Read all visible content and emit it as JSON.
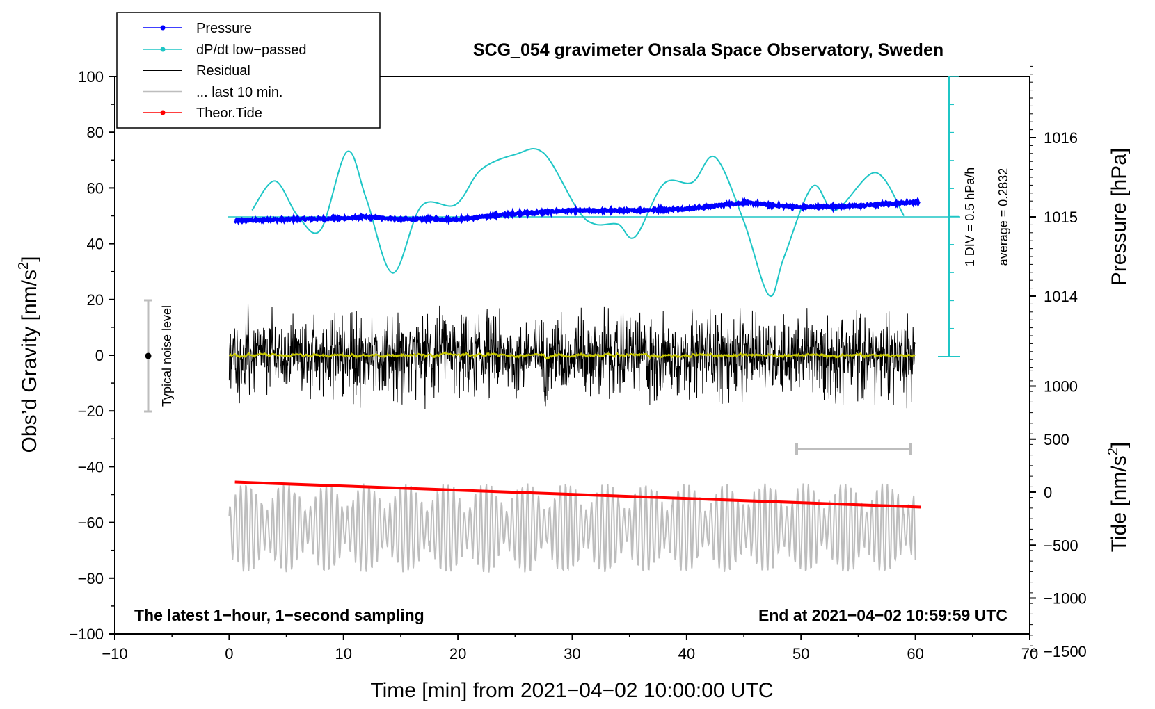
{
  "chart_data": {
    "type": "line",
    "title": "SCG_054 gravimeter Onsala Space Observatory, Sweden",
    "xlabel": "Time [min] from 2021−04−02 10:00:00 UTC",
    "ylabel_left": "Obs’d Gravity [nm/s",
    "ylabel_left_sup": "2",
    "ylabel_left_end": "]",
    "ylabel_right_pressure": "Pressure [hPa]",
    "ylabel_right_tide": "Tide [nm/s",
    "ylabel_right_tide_sup": "2",
    "ylabel_right_tide_end": "]",
    "xlim": [
      -10,
      70
    ],
    "ylim": [
      -100,
      100
    ],
    "x_ticks": [
      "−10",
      "0",
      "10",
      "20",
      "30",
      "40",
      "50",
      "60",
      "70"
    ],
    "y_ticks": [
      "100",
      "80",
      "60",
      "40",
      "20",
      "0",
      "−20",
      "−40",
      "−60",
      "−80",
      "−100"
    ],
    "pressure_ticks": [
      "1016",
      "1015",
      "1014"
    ],
    "tide_ticks": [
      "1000",
      "500",
      "0",
      "−500",
      "−1000",
      "−1500"
    ],
    "legend": [
      {
        "label": "Pressure",
        "color": "#0000ff",
        "marker": true
      },
      {
        "label": "dP/dt low−passed",
        "color": "#1fc6c6",
        "marker": true
      },
      {
        "label": "Residual",
        "color": "#000000",
        "marker": false
      },
      {
        "label": "... last 10 min.",
        "color": "#bdbdbd",
        "marker": false
      },
      {
        "label": "Theor.Tide",
        "color": "#ff0000",
        "marker": true
      }
    ],
    "annotations": {
      "noise_label": "Typical noise level",
      "noise_range": [
        -20,
        20
      ],
      "div_label": "1 DIV = 0.5 hPa/h",
      "average_label": "average = 0.2832",
      "bottom_left": "The latest 1−hour, 1−second sampling",
      "bottom_right": "End at 2021−04−02 10:59:59 UTC"
    },
    "series": [
      {
        "name": "Pressure",
        "color": "#0000ff",
        "x": [
          0.5,
          5,
          10,
          12,
          15,
          20,
          25,
          30,
          35,
          40,
          45,
          50,
          55,
          60.3
        ],
        "y": [
          1014.95,
          1014.97,
          1014.98,
          1015.0,
          1014.97,
          1014.97,
          1015.04,
          1015.08,
          1015.08,
          1015.1,
          1015.18,
          1015.12,
          1015.14,
          1015.19
        ]
      },
      {
        "name": "dP/dt low-passed",
        "color": "#1fc6c6",
        "x": [
          2,
          4,
          6,
          8,
          10.3,
          12,
          14.3,
          16.8,
          19.8,
          22,
          25,
          27.5,
          30.5,
          32,
          34,
          35.5,
          38,
          40.5,
          42.5,
          45,
          47.2,
          48.5,
          51,
          53,
          56.5,
          59
        ],
        "y": [
          52,
          62.5,
          50,
          45,
          73,
          56,
          29.5,
          53.5,
          54,
          66.5,
          72,
          72.5,
          52,
          47,
          47,
          42.5,
          61.5,
          62,
          71,
          48,
          21.5,
          35,
          60.5,
          52,
          65.5,
          50
        ]
      },
      {
        "name": "Residual",
        "color": "#000000",
        "x_range": [
          0,
          60
        ],
        "center": 0,
        "amplitude": 20
      },
      {
        "name": "... last 10 min.",
        "color": "#bdbdbd",
        "x_range": [
          0,
          60
        ],
        "center": -62,
        "amplitude": 16
      },
      {
        "name": "Theor.Tide",
        "color": "#ff0000",
        "x": [
          0.5,
          60.5
        ],
        "y": [
          -45.5,
          -54.5
        ]
      }
    ]
  }
}
